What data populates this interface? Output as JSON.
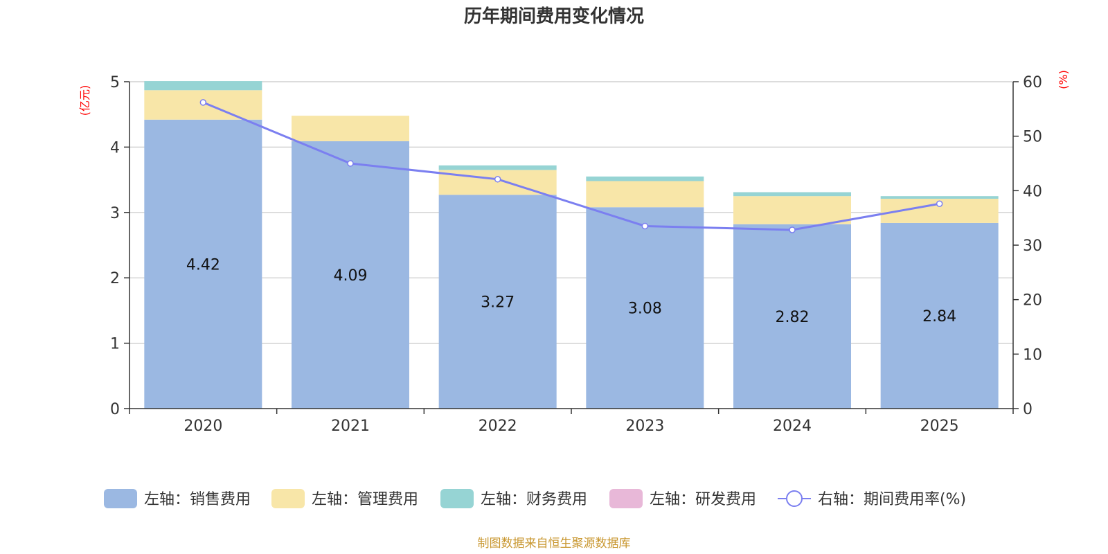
{
  "chart_data": {
    "type": "bar",
    "stacked": true,
    "title": "历年期间费用变化情况",
    "categories": [
      "2020",
      "2021",
      "2022",
      "2023",
      "2024",
      "2025"
    ],
    "y_left": {
      "unit": "(亿元)",
      "min": 0,
      "max": 5,
      "ticks": [
        0,
        1,
        2,
        3,
        4,
        5
      ]
    },
    "y_right": {
      "unit": "(%)",
      "min": 0,
      "max": 60,
      "ticks": [
        0,
        10,
        20,
        30,
        40,
        50,
        60
      ]
    },
    "series": [
      {
        "name": "左轴：销售费用",
        "type": "bar",
        "axis": "left",
        "color": "#9bb8e2",
        "values": [
          4.42,
          4.09,
          3.27,
          3.08,
          2.82,
          2.84
        ],
        "show_labels": true
      },
      {
        "name": "左轴：管理费用",
        "type": "bar",
        "axis": "left",
        "color": "#f8e6a8",
        "values": [
          0.45,
          0.39,
          0.38,
          0.4,
          0.43,
          0.37
        ]
      },
      {
        "name": "左轴：财务费用",
        "type": "bar",
        "axis": "left",
        "color": "#96d4d4",
        "values": [
          0.14,
          0.0,
          0.07,
          0.07,
          0.06,
          0.04
        ]
      },
      {
        "name": "左轴：研发费用",
        "type": "bar",
        "axis": "left",
        "color": "#e8b8d8",
        "values": [
          0,
          0,
          0,
          0,
          0,
          0
        ]
      },
      {
        "name": "右轴：期间费用率(%)",
        "type": "line",
        "axis": "right",
        "color": "#7b7ff0",
        "values": [
          56.2,
          45.0,
          42.1,
          33.5,
          32.8,
          37.6
        ]
      }
    ],
    "legend_position": "bottom",
    "grid": true
  },
  "source": {
    "text": "制图数据来自恒生聚源数据库",
    "color": "#c8962e"
  }
}
